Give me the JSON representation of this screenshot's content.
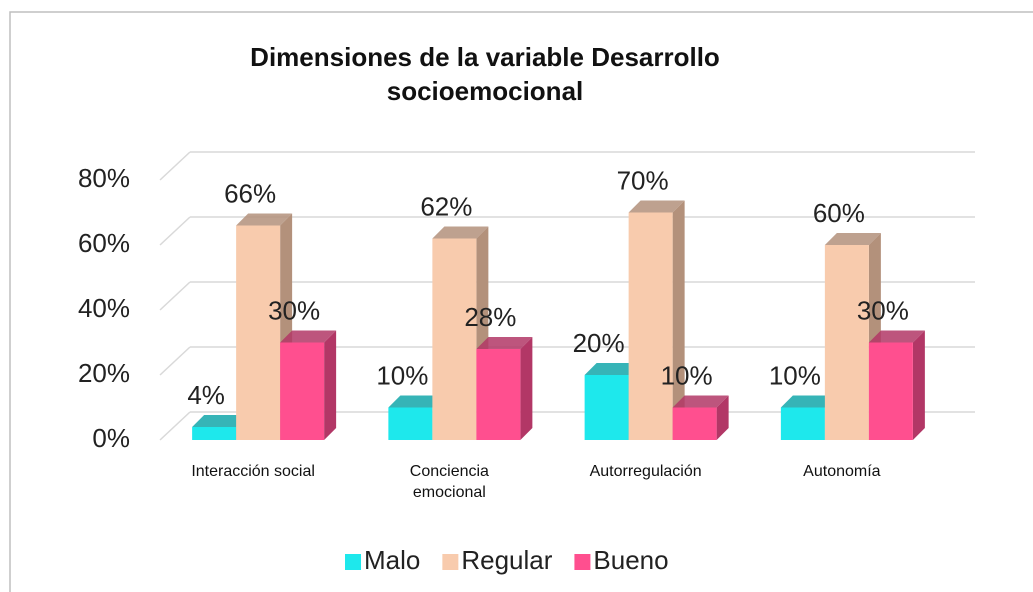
{
  "chart_data": {
    "type": "bar3d",
    "title": "Dimensiones de la variable Desarrollo socioemocional",
    "categories": [
      "Interacción social",
      "Conciencia emocional",
      "Autorregulación",
      "Autonomía"
    ],
    "series": [
      {
        "name": "Malo",
        "color": "#1ee8ec",
        "side_color": "#13a7aa",
        "values": [
          4,
          10,
          20,
          10
        ],
        "value_labels": [
          "4%",
          "10%",
          "20%",
          "10%"
        ]
      },
      {
        "name": "Regular",
        "color": "#f8cbad",
        "side_color": "#b3917b",
        "values": [
          66,
          62,
          70,
          60
        ],
        "value_labels": [
          "66%",
          "62%",
          "70%",
          "60%"
        ]
      },
      {
        "name": "Bueno",
        "color": "#ff4f8f",
        "side_color": "#b23766",
        "values": [
          30,
          28,
          10,
          30
        ],
        "value_labels": [
          "30%",
          "28%",
          "10%",
          "30%"
        ]
      }
    ],
    "ylim": [
      0,
      80
    ],
    "yticks": [
      {
        "value": 0,
        "label": "0%"
      },
      {
        "value": 20,
        "label": "20%"
      },
      {
        "value": 40,
        "label": "40%"
      },
      {
        "value": 60,
        "label": "60%"
      },
      {
        "value": 80,
        "label": "80%"
      }
    ],
    "grid": true,
    "legend": "bottom"
  }
}
